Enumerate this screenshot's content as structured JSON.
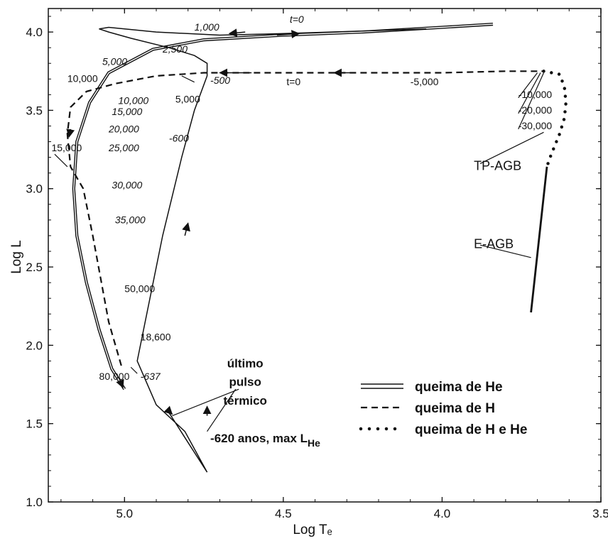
{
  "chart_data": {
    "type": "line",
    "xlabel": "Log Tₑ",
    "ylabel": "Log L",
    "xlim": [
      5.24,
      3.5
    ],
    "ylim": [
      1.0,
      4.15
    ],
    "x_ticks": [
      "5.0",
      "4.5",
      "4.0",
      "3.5"
    ],
    "y_ticks": [
      "1.0",
      "1.5",
      "2.0",
      "2.5",
      "3.0",
      "3.5",
      "4.0"
    ],
    "grid": false,
    "legend_position": "bottom-right",
    "legend": [
      {
        "label": "queima de He",
        "style": "double"
      },
      {
        "label": "queima de H",
        "style": "dashed"
      },
      {
        "label": "queima de H e He",
        "style": "dotted"
      }
    ],
    "series": [
      {
        "style": "double",
        "x": [
          3.84,
          4.0,
          4.25,
          4.5,
          4.75,
          4.91,
          5.05,
          5.11,
          5.15,
          5.16,
          5.15,
          5.12,
          5.08,
          5.04,
          5.0
        ],
        "y": [
          4.05,
          4.03,
          4.0,
          3.98,
          3.95,
          3.89,
          3.74,
          3.55,
          3.3,
          3.0,
          2.7,
          2.4,
          2.1,
          1.85,
          1.72
        ]
      },
      {
        "style": "single",
        "x": [
          4.86,
          4.8,
          4.74,
          4.81,
          4.9,
          4.96,
          4.88,
          4.82,
          4.78,
          4.74,
          4.74,
          4.78,
          4.86,
          4.98,
          5.05,
          5.08,
          5.05,
          4.9,
          4.7,
          4.5,
          4.05
        ],
        "y": [
          1.57,
          1.38,
          1.19,
          1.45,
          1.62,
          1.9,
          2.7,
          3.2,
          3.5,
          3.72,
          3.8,
          3.85,
          3.9,
          3.96,
          4.0,
          4.02,
          4.03,
          4.0,
          3.98,
          3.99,
          4.02
        ]
      },
      {
        "style": "dashed",
        "x": [
          5.01,
          5.05,
          5.1,
          5.13,
          5.17,
          5.18,
          5.17,
          5.12,
          5.03,
          4.9,
          4.75,
          4.5,
          4.25,
          4.0,
          3.8,
          3.68
        ],
        "y": [
          1.87,
          2.15,
          2.7,
          3.0,
          3.14,
          3.35,
          3.52,
          3.62,
          3.67,
          3.72,
          3.74,
          3.74,
          3.74,
          3.74,
          3.75,
          3.75
        ]
      },
      {
        "style": "dotted",
        "x": [
          3.68,
          3.63,
          3.615,
          3.61,
          3.615,
          3.63,
          3.65,
          3.66,
          3.67
        ],
        "y": [
          3.75,
          3.73,
          3.65,
          3.55,
          3.45,
          3.35,
          3.25,
          3.2,
          3.14
        ]
      },
      {
        "style": "solid",
        "x": [
          3.67,
          3.72
        ],
        "y": [
          3.14,
          2.21
        ]
      }
    ],
    "annotations": [
      {
        "text": "t=0",
        "italic": true,
        "x": 4.48,
        "y": 4.06
      },
      {
        "text": "1,000",
        "italic": true,
        "x": 4.78,
        "y": 4.01
      },
      {
        "text": "2,500",
        "italic": true,
        "x": 4.88,
        "y": 3.87
      },
      {
        "text": "5,000",
        "italic": true,
        "x": 5.07,
        "y": 3.79
      },
      {
        "text": "10,000",
        "italic": false,
        "x": 5.18,
        "y": 3.68
      },
      {
        "text": "10,000",
        "italic": true,
        "x": 5.02,
        "y": 3.54
      },
      {
        "text": "15,000",
        "italic": true,
        "x": 5.04,
        "y": 3.47
      },
      {
        "text": "20,000",
        "italic": true,
        "x": 5.05,
        "y": 3.36
      },
      {
        "text": "25,000",
        "italic": true,
        "x": 5.05,
        "y": 3.24
      },
      {
        "text": "15,000",
        "italic": false,
        "x": 5.23,
        "y": 3.24
      },
      {
        "text": "30,000",
        "italic": true,
        "x": 5.04,
        "y": 3.0
      },
      {
        "text": "35,000",
        "italic": true,
        "x": 5.03,
        "y": 2.78
      },
      {
        "text": "50,000",
        "italic": false,
        "x": 5.0,
        "y": 2.34
      },
      {
        "text": "18,600",
        "italic": false,
        "x": 4.95,
        "y": 2.03
      },
      {
        "text": "80,000",
        "italic": false,
        "x": 5.08,
        "y": 1.78
      },
      {
        "text": "-637",
        "italic": true,
        "x": 4.95,
        "y": 1.78
      },
      {
        "text": "-500",
        "italic": true,
        "x": 4.73,
        "y": 3.67
      },
      {
        "text": "5,000",
        "italic": false,
        "x": 4.84,
        "y": 3.55
      },
      {
        "text": "-600",
        "italic": true,
        "x": 4.86,
        "y": 3.3
      },
      {
        "text": "t=0",
        "italic": false,
        "x": 4.49,
        "y": 3.66
      },
      {
        "text": "-5,000",
        "italic": false,
        "x": 4.1,
        "y": 3.66
      },
      {
        "text": "-10,000",
        "italic": false,
        "x": 3.76,
        "y": 3.58
      },
      {
        "text": "-20,000",
        "italic": false,
        "x": 3.76,
        "y": 3.48
      },
      {
        "text": "-30,000",
        "italic": false,
        "x": 3.76,
        "y": 3.38
      },
      {
        "text": "TP-AGB",
        "italic": false,
        "x": 3.9,
        "y": 3.12
      },
      {
        "text": "E-AGB",
        "italic": false,
        "x": 3.9,
        "y": 2.62
      },
      {
        "text": "último",
        "italic": false,
        "x": 4.62,
        "y": 1.86
      },
      {
        "text": "pulso",
        "italic": false,
        "x": 4.62,
        "y": 1.74
      },
      {
        "text": "térmico",
        "italic": false,
        "x": 4.62,
        "y": 1.62
      },
      {
        "text": "-620 anos, max L",
        "subscript": "He",
        "italic": false,
        "x": 4.73,
        "y": 1.38
      }
    ]
  }
}
